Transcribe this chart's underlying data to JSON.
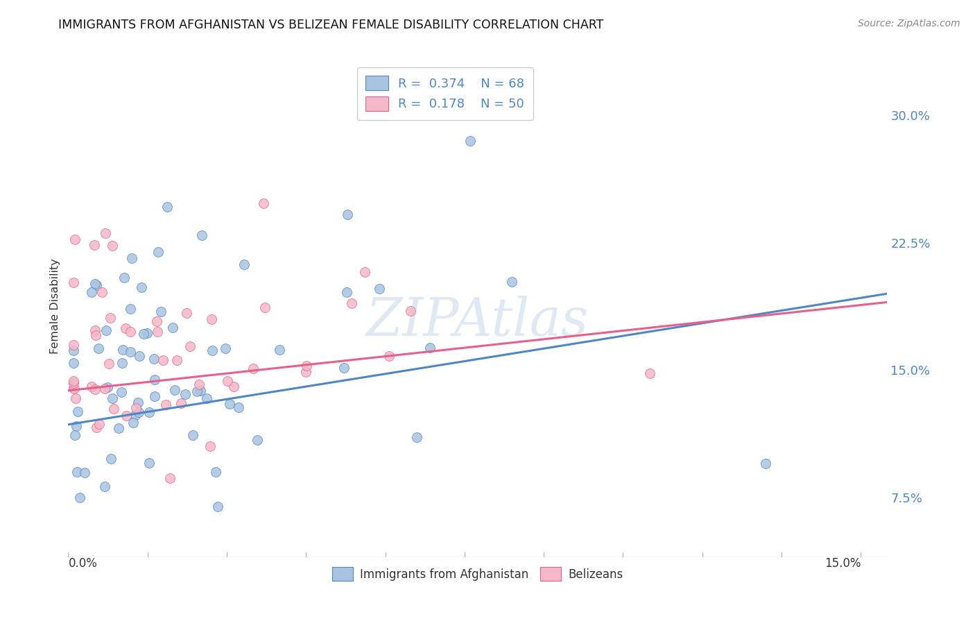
{
  "title": "IMMIGRANTS FROM AFGHANISTAN VS BELIZEAN FEMALE DISABILITY CORRELATION CHART",
  "source": "Source: ZipAtlas.com",
  "ylabel": "Female Disability",
  "y_ticks": [
    0.075,
    0.15,
    0.225,
    0.3
  ],
  "y_tick_labels": [
    "7.5%",
    "15.0%",
    "22.5%",
    "30.0%"
  ],
  "xlim": [
    0.0,
    0.155
  ],
  "ylim": [
    0.04,
    0.335
  ],
  "watermark": "ZIPAtlas",
  "legend_line1": "R =  0.374    N = 68",
  "legend_line2": "R =  0.178    N = 50",
  "color_blue": "#a8c4e0",
  "color_pink": "#f4b8c8",
  "line_color_blue": "#4f86c6",
  "line_color_pink": "#e8608a",
  "background_color": "#ffffff",
  "grid_color": "#cccccc",
  "blue_trend": [
    0.118,
    0.195
  ],
  "pink_trend": [
    0.138,
    0.19
  ],
  "title_fontsize": 12.5,
  "source_fontsize": 10
}
